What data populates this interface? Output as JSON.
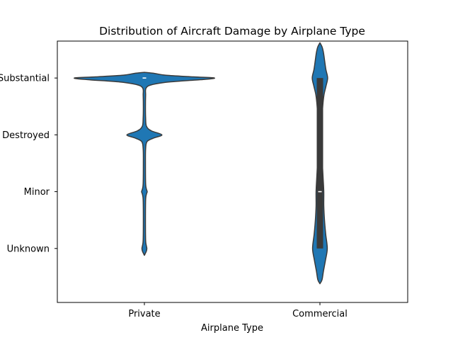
{
  "chart_data": {
    "type": "violin",
    "title": "Distribution of Aircraft Damage by Airplane Type",
    "xlabel": "Airplane Type",
    "ylabel": "",
    "categories": [
      "Private",
      "Commercial"
    ],
    "y_categories": [
      "Substantial",
      "Destroyed",
      "Minor",
      "Unknown"
    ],
    "y_note": "Categorical y-axis: Substantial=0, Destroyed=1, Minor=2, Unknown=3 (top to bottom)",
    "ylim": [
      -0.65,
      3.95
    ],
    "grid": false,
    "legend": "none",
    "colors": {
      "violin": "#1f77b4",
      "outline": "#3a3a3a",
      "box": "#3a3a3a",
      "median": "#ffffff"
    },
    "series": [
      {
        "name": "Private",
        "median": 0,
        "q1": 0,
        "q3": 0,
        "density": [
          [
            -0.1,
            0.0
          ],
          [
            -0.08,
            0.06
          ],
          [
            -0.05,
            0.12
          ],
          [
            -0.02,
            0.28
          ],
          [
            0.0,
            0.4
          ],
          [
            0.03,
            0.32
          ],
          [
            0.07,
            0.14
          ],
          [
            0.12,
            0.04
          ],
          [
            0.18,
            0.009
          ],
          [
            0.3,
            0.007
          ],
          [
            0.5,
            0.006
          ],
          [
            0.7,
            0.007
          ],
          [
            0.85,
            0.012
          ],
          [
            0.93,
            0.04
          ],
          [
            1.0,
            0.1
          ],
          [
            1.06,
            0.05
          ],
          [
            1.12,
            0.015
          ],
          [
            1.25,
            0.007
          ],
          [
            1.5,
            0.006
          ],
          [
            1.85,
            0.007
          ],
          [
            1.95,
            0.011
          ],
          [
            2.0,
            0.016
          ],
          [
            2.05,
            0.011
          ],
          [
            2.15,
            0.007
          ],
          [
            2.5,
            0.006
          ],
          [
            2.85,
            0.007
          ],
          [
            2.95,
            0.011
          ],
          [
            3.0,
            0.014
          ],
          [
            3.05,
            0.011
          ],
          [
            3.12,
            0.0
          ]
        ]
      },
      {
        "name": "Commercial",
        "median": 2,
        "q1": 0,
        "q3": 3,
        "density": [
          [
            -0.62,
            0.0
          ],
          [
            -0.55,
            0.012
          ],
          [
            -0.45,
            0.02
          ],
          [
            -0.3,
            0.027
          ],
          [
            -0.15,
            0.034
          ],
          [
            0.0,
            0.044
          ],
          [
            0.15,
            0.034
          ],
          [
            0.3,
            0.023
          ],
          [
            0.5,
            0.016
          ],
          [
            0.75,
            0.012
          ],
          [
            1.0,
            0.011
          ],
          [
            1.25,
            0.012
          ],
          [
            1.5,
            0.014
          ],
          [
            1.75,
            0.018
          ],
          [
            2.0,
            0.022
          ],
          [
            2.25,
            0.022
          ],
          [
            2.5,
            0.026
          ],
          [
            2.75,
            0.033
          ],
          [
            3.0,
            0.042
          ],
          [
            3.2,
            0.032
          ],
          [
            3.4,
            0.02
          ],
          [
            3.55,
            0.012
          ],
          [
            3.62,
            0.0
          ]
        ]
      }
    ]
  }
}
